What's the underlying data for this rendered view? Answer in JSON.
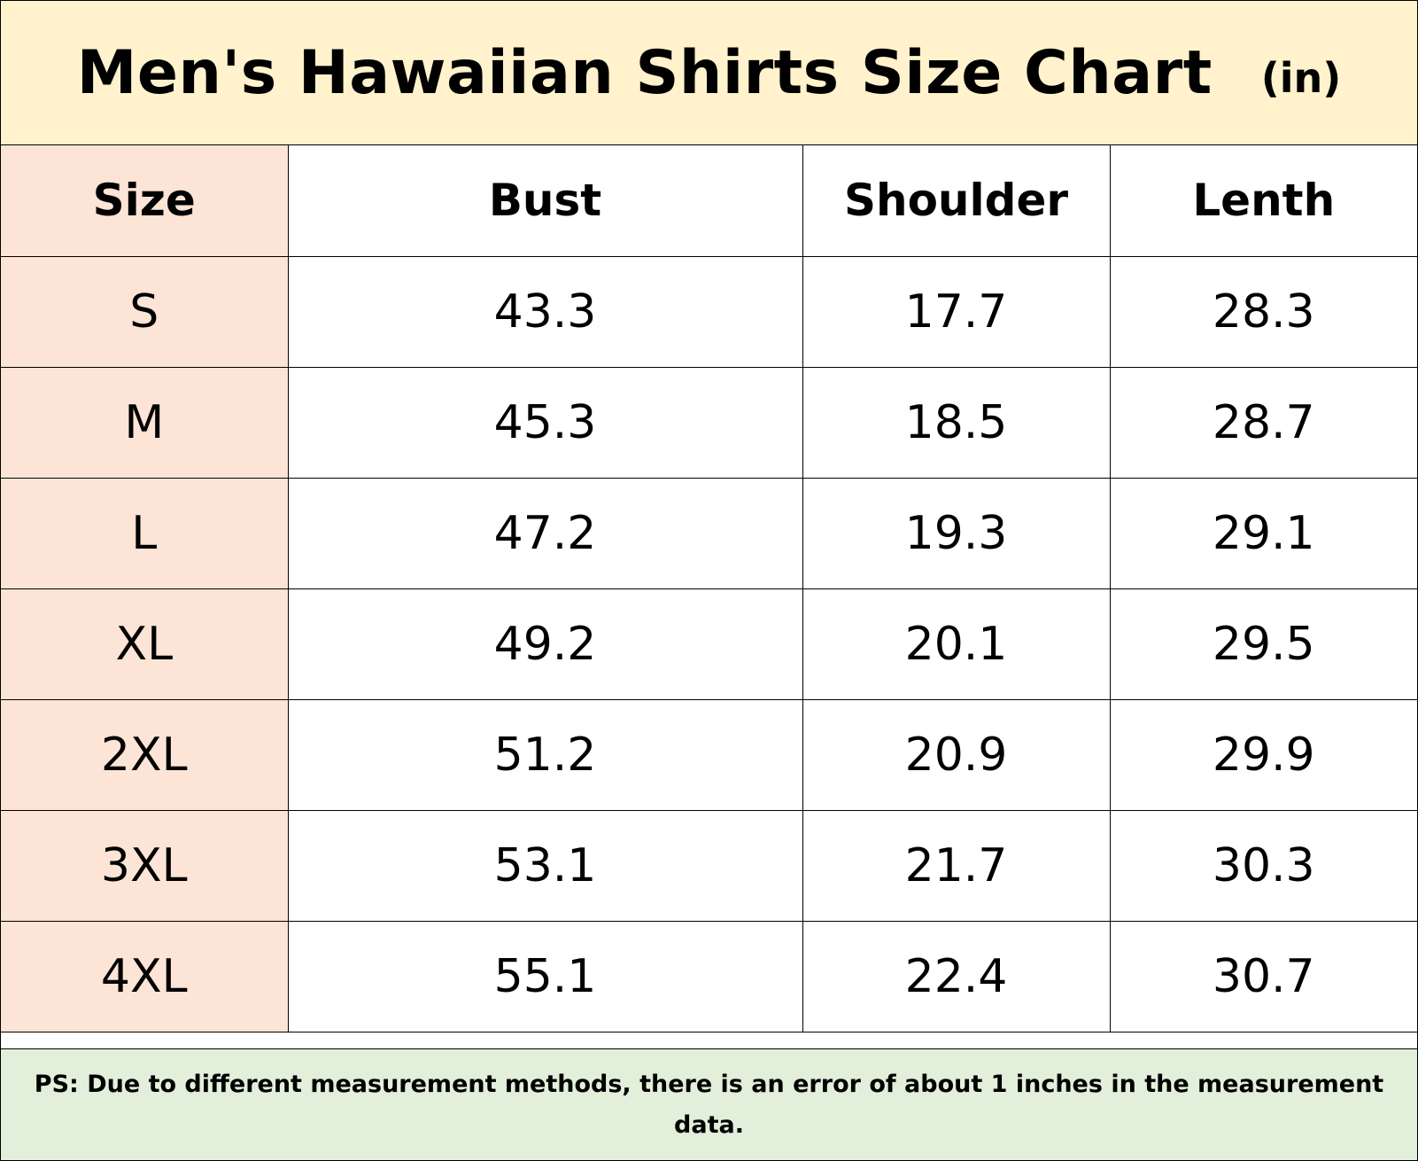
{
  "header": {
    "title": "Men's Hawaiian Shirts Size Chart",
    "unit": "(in)"
  },
  "colors": {
    "title_background": "#fff2cc",
    "size_column_background": "#fce4d6",
    "footnote_background": "#e2efda",
    "border": "#000000"
  },
  "table": {
    "columns": [
      "Size",
      "Bust",
      "Shoulder",
      "Lenth"
    ],
    "rows": [
      [
        "S",
        "43.3",
        "17.7",
        "28.3"
      ],
      [
        "M",
        "45.3",
        "18.5",
        "28.7"
      ],
      [
        "L",
        "47.2",
        "19.3",
        "29.1"
      ],
      [
        "XL",
        "49.2",
        "20.1",
        "29.5"
      ],
      [
        "2XL",
        "51.2",
        "20.9",
        "29.9"
      ],
      [
        "3XL",
        "53.1",
        "21.7",
        "30.3"
      ],
      [
        "4XL",
        "55.1",
        "22.4",
        "30.7"
      ]
    ]
  },
  "footnote": {
    "text": "PS: Due to different measurement methods, there is an error of about 1 inches in the measurement data."
  }
}
